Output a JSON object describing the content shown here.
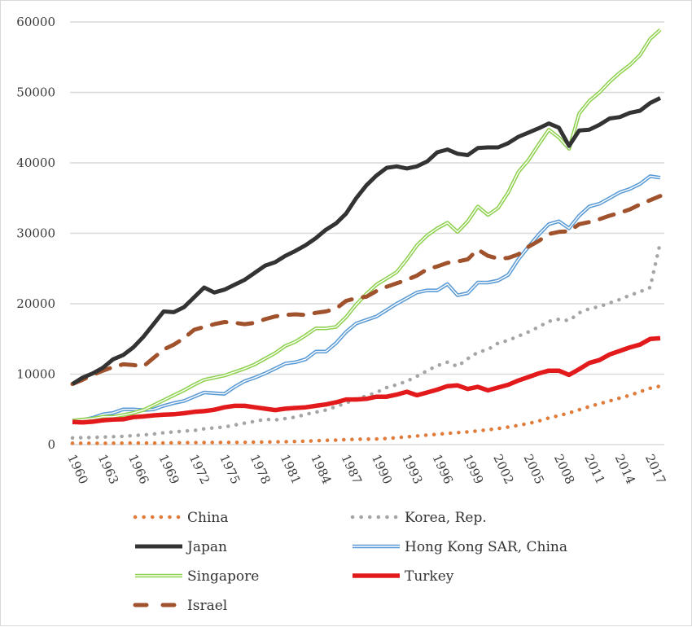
{
  "chart_data": {
    "type": "line",
    "title": "",
    "xlabel": "",
    "ylabel": "",
    "ylim": [
      0,
      60000
    ],
    "yticks": [
      "0",
      "10000",
      "20000",
      "30000",
      "40000",
      "50000",
      "60000"
    ],
    "ytick_values": [
      0,
      10000,
      20000,
      30000,
      40000,
      50000,
      60000
    ],
    "xlim": [
      1960,
      2018
    ],
    "xticks": [
      "1960",
      "1963",
      "1966",
      "1969",
      "1972",
      "1975",
      "1978",
      "1981",
      "1984",
      "1987",
      "1990",
      "1993",
      "1996",
      "1999",
      "2002",
      "2005",
      "2008",
      "2011",
      "2014",
      "2017"
    ],
    "grid": true,
    "legend_position": "bottom",
    "x": [
      1960,
      1961,
      1962,
      1963,
      1964,
      1965,
      1966,
      1967,
      1968,
      1969,
      1970,
      1971,
      1972,
      1973,
      1974,
      1975,
      1976,
      1977,
      1978,
      1979,
      1980,
      1981,
      1982,
      1983,
      1984,
      1985,
      1986,
      1987,
      1988,
      1989,
      1990,
      1991,
      1992,
      1993,
      1994,
      1995,
      1996,
      1997,
      1998,
      1999,
      2000,
      2001,
      2002,
      2003,
      2004,
      2005,
      2006,
      2007,
      2008,
      2009,
      2010,
      2011,
      2012,
      2013,
      2014,
      2015,
      2016,
      2017,
      2018
    ],
    "series": [
      {
        "name": "China",
        "color": "#e07b39",
        "style": "dotted",
        "values": [
          200,
          190,
          180,
          185,
          195,
          210,
          220,
          215,
          210,
          230,
          260,
          270,
          275,
          290,
          295,
          310,
          305,
          320,
          350,
          370,
          390,
          410,
          440,
          480,
          540,
          600,
          640,
          700,
          760,
          780,
          800,
          870,
          980,
          1100,
          1230,
          1350,
          1470,
          1590,
          1700,
          1800,
          1950,
          2100,
          2280,
          2500,
          2730,
          3000,
          3340,
          3780,
          4120,
          4500,
          4950,
          5400,
          5800,
          6200,
          6600,
          7000,
          7500,
          8000,
          8300
        ]
      },
      {
        "name": "Korea, Rep.",
        "color": "#a5a5a5",
        "style": "dotted",
        "values": [
          950,
          990,
          1010,
          1080,
          1120,
          1170,
          1280,
          1360,
          1500,
          1680,
          1800,
          1920,
          2000,
          2240,
          2380,
          2500,
          2780,
          3050,
          3300,
          3600,
          3500,
          3700,
          3900,
          4300,
          4600,
          4900,
          5400,
          5900,
          6500,
          6900,
          7400,
          8100,
          8500,
          9000,
          9700,
          10500,
          11200,
          11700,
          11100,
          12200,
          13100,
          13500,
          14400,
          14800,
          15400,
          16000,
          16700,
          17500,
          17800,
          17600,
          18700,
          19300,
          19600,
          20100,
          20600,
          21200,
          21700,
          22300,
          28700
        ]
      },
      {
        "name": "Japan",
        "color": "#333333",
        "style": "solid",
        "values": [
          8600,
          9500,
          10100,
          10900,
          12100,
          12700,
          13800,
          15300,
          17100,
          18900,
          18800,
          19500,
          20900,
          22300,
          21600,
          22000,
          22700,
          23400,
          24400,
          25400,
          25900,
          26800,
          27500,
          28300,
          29300,
          30500,
          31400,
          32800,
          35000,
          36800,
          38200,
          39300,
          39500,
          39200,
          39500,
          40200,
          41500,
          41900,
          41300,
          41100,
          42100,
          42200,
          42200,
          42800,
          43700,
          44300,
          44900,
          45600,
          45000,
          42400,
          44600,
          44700,
          45400,
          46300,
          46500,
          47100,
          47400,
          48500,
          49200
        ]
      },
      {
        "name": "Hong Kong SAR, China",
        "color": "#5b9bd5",
        "style": "double",
        "values": [
          3400,
          3500,
          3800,
          4300,
          4500,
          5000,
          5000,
          4900,
          5000,
          5500,
          5900,
          6200,
          6800,
          7400,
          7300,
          7200,
          8200,
          9000,
          9500,
          10100,
          10800,
          11500,
          11700,
          12100,
          13200,
          13200,
          14400,
          16000,
          17200,
          17700,
          18200,
          19100,
          20000,
          20800,
          21600,
          21900,
          21900,
          22800,
          21200,
          21500,
          23000,
          23000,
          23300,
          24100,
          26300,
          28100,
          29800,
          31300,
          31700,
          30700,
          32500,
          33800,
          34200,
          35000,
          35800,
          36300,
          37000,
          38100,
          37900
        ]
      },
      {
        "name": "Singapore",
        "color": "#8fd14f",
        "style": "double",
        "values": [
          3400,
          3550,
          3700,
          3950,
          3950,
          4200,
          4500,
          4900,
          5600,
          6300,
          7000,
          7700,
          8500,
          9200,
          9500,
          9800,
          10300,
          10800,
          11400,
          12200,
          13000,
          14000,
          14600,
          15500,
          16500,
          16500,
          16700,
          18100,
          19900,
          21400,
          22700,
          23600,
          24500,
          26300,
          28300,
          29700,
          30700,
          31500,
          30200,
          31700,
          33800,
          32600,
          33600,
          35800,
          38700,
          40400,
          42600,
          44700,
          43600,
          42000,
          47000,
          48800,
          50000,
          51500,
          52800,
          53900,
          55300,
          57600,
          58900
        ]
      },
      {
        "name": "Turkey",
        "color": "#e31a1c",
        "style": "solid",
        "values": [
          3200,
          3150,
          3250,
          3450,
          3550,
          3600,
          3900,
          4000,
          4150,
          4250,
          4300,
          4450,
          4650,
          4750,
          4950,
          5300,
          5500,
          5500,
          5300,
          5100,
          4900,
          5100,
          5200,
          5300,
          5500,
          5700,
          6000,
          6400,
          6400,
          6500,
          6800,
          6800,
          7100,
          7500,
          7000,
          7400,
          7800,
          8300,
          8400,
          7900,
          8200,
          7700,
          8100,
          8500,
          9100,
          9600,
          10100,
          10500,
          10500,
          9900,
          10700,
          11600,
          12000,
          12800,
          13300,
          13800,
          14200,
          15000,
          15100
        ]
      },
      {
        "name": "Israel",
        "color": "#a0522d",
        "style": "dashed",
        "values": [
          8600,
          9200,
          9900,
          10500,
          11000,
          11400,
          11300,
          11100,
          12300,
          13500,
          14200,
          15100,
          16300,
          16700,
          17100,
          17400,
          17300,
          17100,
          17300,
          17800,
          18200,
          18400,
          18500,
          18400,
          18700,
          18900,
          19300,
          20400,
          20800,
          21000,
          21800,
          22400,
          22900,
          23400,
          24000,
          24900,
          25300,
          25800,
          26000,
          26300,
          27700,
          26800,
          26400,
          26500,
          27000,
          28100,
          28900,
          29900,
          30200,
          30300,
          31300,
          31600,
          32000,
          32500,
          32900,
          33400,
          34100,
          34700,
          35300
        ]
      }
    ]
  }
}
